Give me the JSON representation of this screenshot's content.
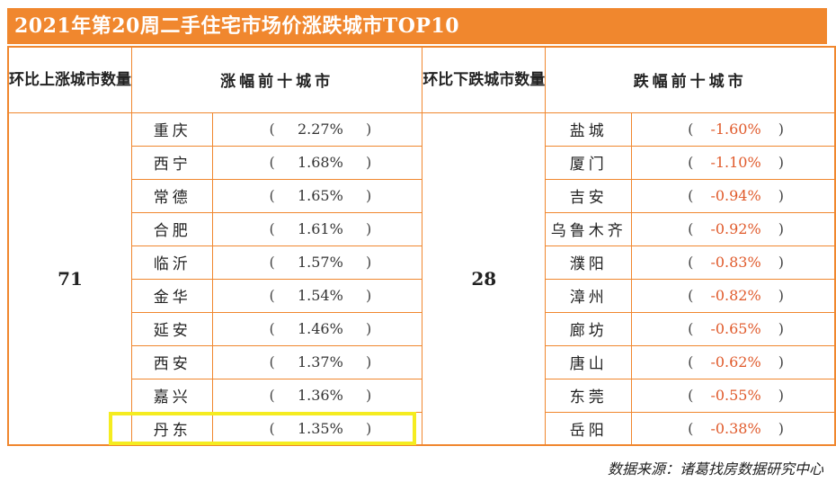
{
  "title": "2021年第20周二手住宅市场价涨跌城市TOP10",
  "left_block": {
    "count_header": "环比上涨城市数量",
    "list_header": "涨幅前十城市",
    "count": "71",
    "cities": [
      "重庆",
      "西宁",
      "常德",
      "合肥",
      "临沂",
      "金华",
      "延安",
      "西安",
      "嘉兴",
      "丹东"
    ],
    "values": [
      "2.27%",
      "1.68%",
      "1.65%",
      "1.61%",
      "1.57%",
      "1.54%",
      "1.46%",
      "1.37%",
      "1.36%",
      "1.35%"
    ]
  },
  "right_block": {
    "count_header": "环比下跌城市数量",
    "list_header": "跌幅前十城市",
    "count": "28",
    "cities": [
      "盐城",
      "厦门",
      "吉安",
      "乌鲁木齐",
      "濮阳",
      "漳州",
      "廊坊",
      "唐山",
      "东莞",
      "岳阳"
    ],
    "values": [
      "-1.60%",
      "-1.10%",
      "-0.94%",
      "-0.92%",
      "-0.83%",
      "-0.82%",
      "-0.65%",
      "-0.62%",
      "-0.55%",
      "-0.38%"
    ]
  },
  "paren_open": "(",
  "paren_close": ")",
  "highlight_color": "#f5ec20",
  "accent_color": "#f0872e",
  "source": "数据来源：诸葛找房数据研究中心"
}
